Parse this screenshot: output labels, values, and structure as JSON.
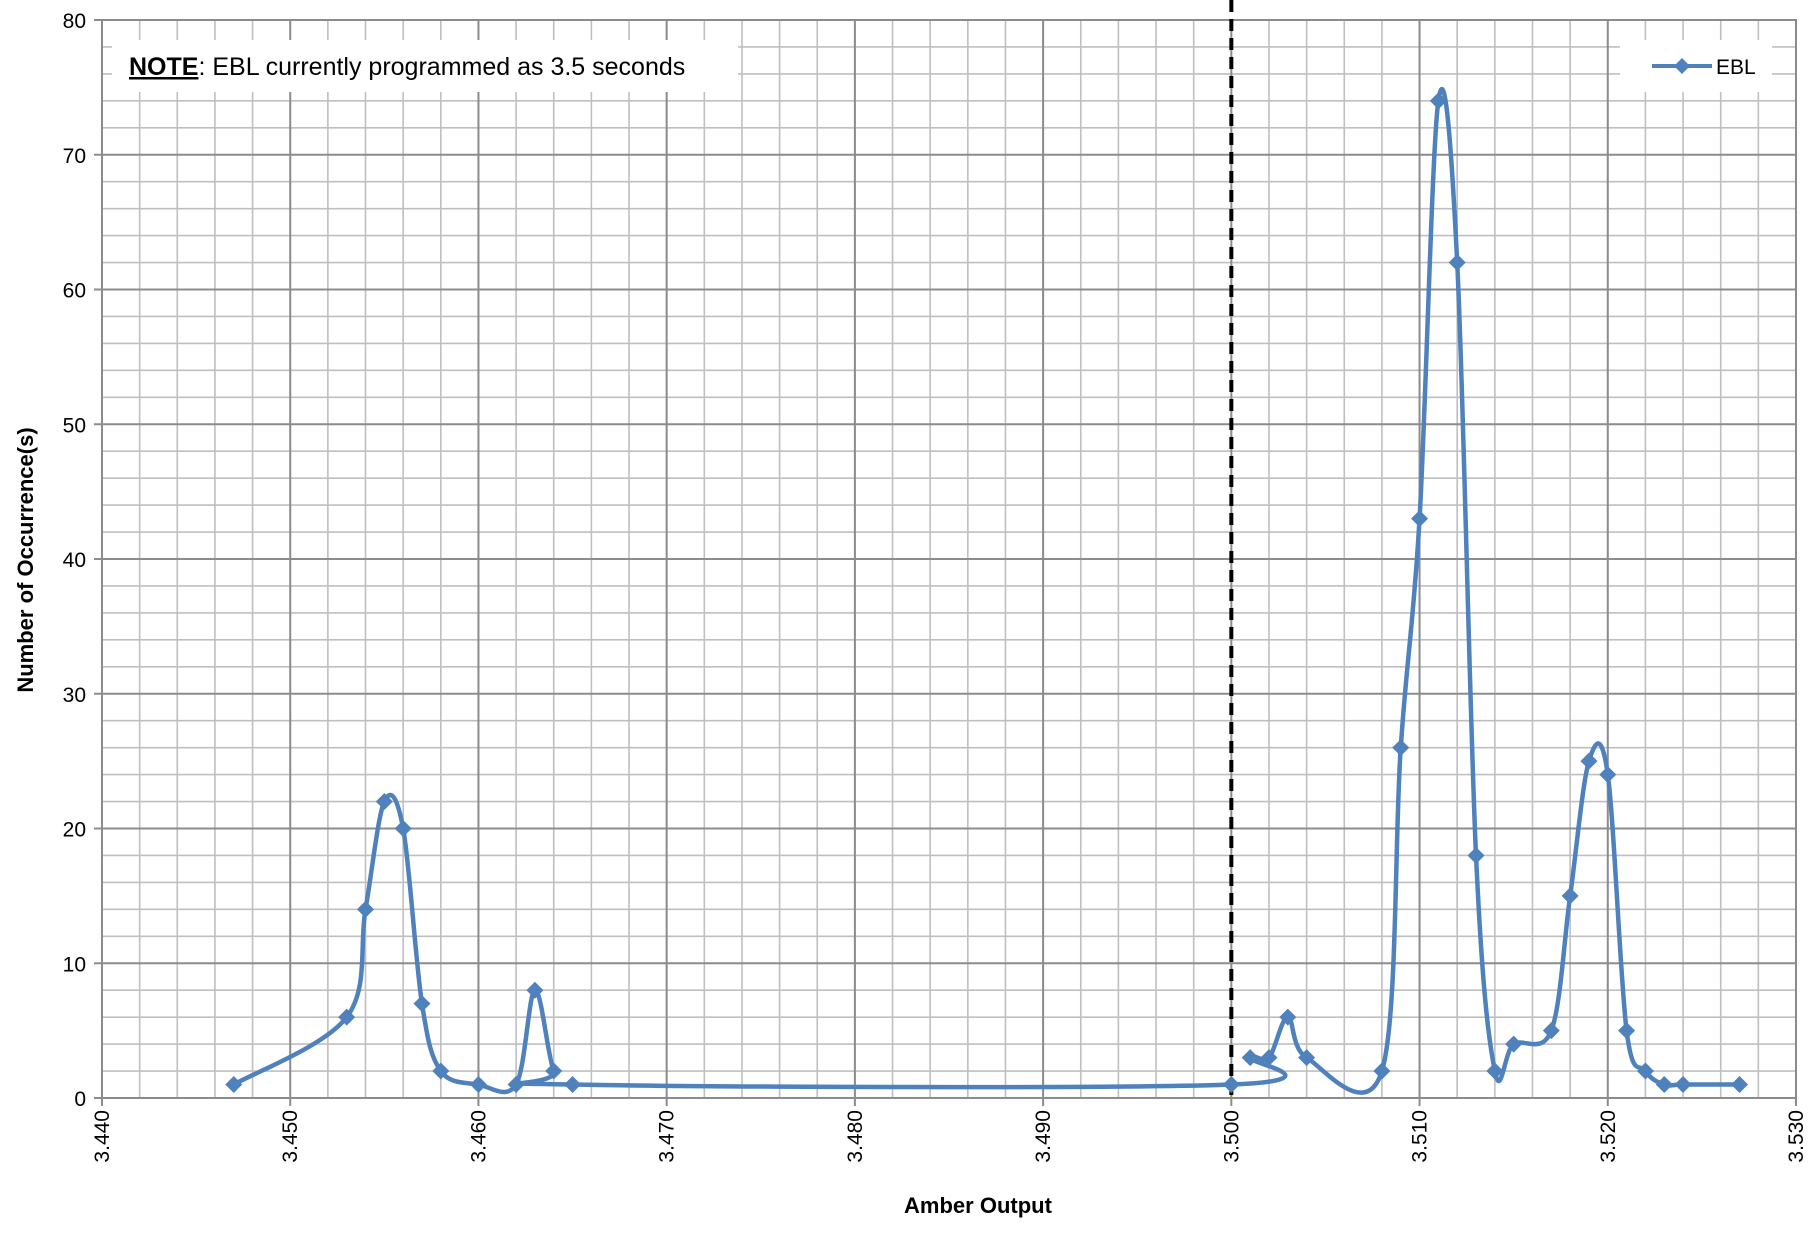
{
  "chart_data": {
    "type": "line",
    "title": "",
    "xlabel": "Amber Output",
    "ylabel": "Number of Occurrence(s)",
    "xlim": [
      3.44,
      3.53
    ],
    "ylim": [
      0,
      80
    ],
    "x_ticks": [
      "3.440",
      "3.450",
      "3.460",
      "3.470",
      "3.480",
      "3.490",
      "3.500",
      "3.510",
      "3.520",
      "3.530"
    ],
    "y_ticks": [
      "0",
      "10",
      "20",
      "30",
      "40",
      "50",
      "60",
      "70",
      "80"
    ],
    "grid": true,
    "legend_position": "top-right",
    "series": [
      {
        "name": "EBL",
        "color": "#4F81BD",
        "marker": "diamond",
        "smooth": true,
        "x": [
          3.447,
          3.453,
          3.454,
          3.455,
          3.456,
          3.457,
          3.458,
          3.46,
          3.462,
          3.463,
          3.464,
          3.465,
          3.5,
          3.501,
          3.502,
          3.503,
          3.504,
          3.508,
          3.509,
          3.51,
          3.511,
          3.512,
          3.513,
          3.514,
          3.515,
          3.517,
          3.518,
          3.519,
          3.52,
          3.521,
          3.522,
          3.523,
          3.524,
          3.527
        ],
        "y": [
          1,
          6,
          14,
          22,
          20,
          7,
          2,
          1,
          1,
          8,
          2,
          1,
          1,
          3,
          3,
          6,
          3,
          2,
          26,
          43,
          74,
          62,
          18,
          2,
          4,
          5,
          15,
          25,
          24,
          5,
          2,
          1,
          1,
          1
        ]
      }
    ],
    "reference_line": {
      "x": 3.5,
      "style": "dashed",
      "color": "#000000"
    },
    "annotation": {
      "bold_text": "NOTE",
      "text": ": EBL currently programmed as 3.5 seconds"
    }
  }
}
